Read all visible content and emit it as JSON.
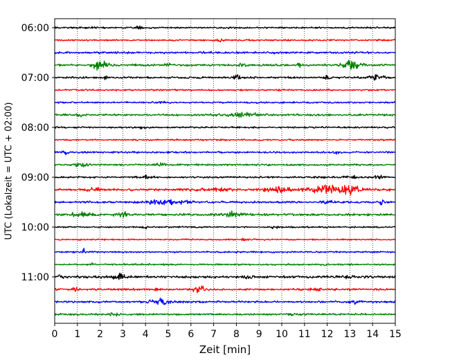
{
  "chart_data": {
    "type": "line",
    "title": "",
    "xlabel": "Zeit  [min]",
    "ylabel": "UTC (Lokalzeit = UTC + 02:00)",
    "xlim": [
      0,
      15
    ],
    "x_ticks": [
      "0",
      "1",
      "2",
      "3",
      "4",
      "5",
      "6",
      "7",
      "8",
      "9",
      "10",
      "11",
      "12",
      "13",
      "14",
      "15"
    ],
    "y_ticks": [
      "06:00",
      "07:00",
      "08:00",
      "09:00",
      "10:00",
      "11:00"
    ],
    "vertical_grid": "dotted, every 1 min",
    "trace_colors": [
      "#000000",
      "#ff0000",
      "#0000ff",
      "#008000"
    ],
    "series": [
      {
        "label": "06:00",
        "color": "#000000",
        "base": 0.9,
        "events": [
          [
            3.7,
            2.2,
            0.12
          ],
          [
            1.6,
            1.0,
            0.2
          ]
        ]
      },
      {
        "label": "06:15",
        "color": "#ff0000",
        "base": 0.9,
        "events": [
          [
            7.3,
            2.0,
            0.12
          ]
        ]
      },
      {
        "label": "06:30",
        "color": "#0000ff",
        "base": 1.1,
        "events": []
      },
      {
        "label": "06:45",
        "color": "#008000",
        "base": 1.1,
        "events": [
          [
            2.0,
            5.5,
            0.35
          ],
          [
            5.0,
            2.0,
            0.12
          ],
          [
            8.3,
            2.0,
            0.15
          ],
          [
            10.8,
            2.0,
            0.15
          ],
          [
            13.1,
            5.5,
            0.35
          ]
        ]
      },
      {
        "label": "07:00",
        "color": "#000000",
        "base": 1.0,
        "events": [
          [
            2.2,
            2.2,
            0.15
          ],
          [
            8.0,
            2.8,
            0.2
          ],
          [
            14.2,
            3.5,
            0.3
          ],
          [
            12.0,
            1.4,
            0.2
          ]
        ]
      },
      {
        "label": "07:15",
        "color": "#ff0000",
        "base": 0.9,
        "events": []
      },
      {
        "label": "07:30",
        "color": "#0000ff",
        "base": 0.9,
        "events": [
          [
            4.7,
            1.2,
            0.3
          ]
        ]
      },
      {
        "label": "07:45",
        "color": "#008000",
        "base": 1.1,
        "events": [
          [
            1.1,
            2.0,
            0.12
          ],
          [
            8.3,
            1.6,
            0.8
          ]
        ]
      },
      {
        "label": "08:00",
        "color": "#000000",
        "base": 0.9,
        "events": [
          [
            3.8,
            1.4,
            0.15
          ]
        ]
      },
      {
        "label": "08:15",
        "color": "#ff0000",
        "base": 0.9,
        "events": []
      },
      {
        "label": "08:30",
        "color": "#0000ff",
        "base": 1.0,
        "events": [
          [
            0.5,
            1.8,
            0.12
          ],
          [
            12.4,
            2.2,
            0.1
          ]
        ]
      },
      {
        "label": "08:45",
        "color": "#008000",
        "base": 1.0,
        "events": [
          [
            1.2,
            2.2,
            0.25
          ],
          [
            4.7,
            1.6,
            0.2
          ]
        ]
      },
      {
        "label": "09:00",
        "color": "#000000",
        "base": 1.0,
        "events": [
          [
            13.1,
            2.2,
            0.25
          ],
          [
            14.3,
            1.8,
            0.2
          ],
          [
            4.0,
            1.3,
            0.3
          ]
        ]
      },
      {
        "label": "09:15",
        "color": "#ff0000",
        "base": 1.3,
        "events": [
          [
            9.8,
            3.0,
            0.5
          ],
          [
            12.2,
            4.0,
            0.9
          ],
          [
            13.0,
            3.5,
            0.35
          ],
          [
            1.7,
            1.8,
            0.3
          ],
          [
            7.0,
            1.4,
            0.6
          ]
        ]
      },
      {
        "label": "09:30",
        "color": "#0000ff",
        "base": 1.1,
        "events": [
          [
            4.8,
            3.0,
            0.6
          ],
          [
            5.8,
            1.6,
            0.3
          ],
          [
            14.4,
            2.6,
            0.08
          ],
          [
            12.0,
            1.4,
            0.3
          ]
        ]
      },
      {
        "label": "09:45",
        "color": "#008000",
        "base": 1.3,
        "events": [
          [
            1.2,
            2.0,
            0.5
          ],
          [
            7.8,
            2.6,
            0.4
          ],
          [
            3.0,
            1.4,
            0.3
          ]
        ]
      },
      {
        "label": "10:00",
        "color": "#000000",
        "base": 0.8,
        "events": [
          [
            9.7,
            1.6,
            0.12
          ],
          [
            4.0,
            1.3,
            0.12
          ]
        ]
      },
      {
        "label": "10:15",
        "color": "#ff0000",
        "base": 0.8,
        "events": [
          [
            8.3,
            1.6,
            0.1
          ]
        ]
      },
      {
        "label": "10:30",
        "color": "#0000ff",
        "base": 0.9,
        "events": [
          [
            1.3,
            3.2,
            0.06
          ]
        ]
      },
      {
        "label": "10:45",
        "color": "#008000",
        "base": 0.9,
        "events": [
          [
            1.6,
            2.2,
            0.08
          ],
          [
            12.0,
            2.8,
            0.08
          ]
        ]
      },
      {
        "label": "11:00",
        "color": "#000000",
        "base": 1.3,
        "events": [
          [
            0.2,
            2.0,
            0.15
          ],
          [
            2.9,
            2.6,
            0.3
          ],
          [
            13.0,
            1.8,
            0.2
          ],
          [
            8.5,
            1.4,
            0.3
          ]
        ]
      },
      {
        "label": "11:15",
        "color": "#ff0000",
        "base": 1.1,
        "events": [
          [
            0.9,
            2.6,
            0.12
          ],
          [
            4.5,
            2.0,
            0.12
          ],
          [
            6.4,
            2.8,
            0.3
          ],
          [
            11.5,
            1.4,
            0.3
          ]
        ]
      },
      {
        "label": "11:30",
        "color": "#0000ff",
        "base": 1.1,
        "events": [
          [
            4.7,
            3.2,
            0.45
          ],
          [
            13.3,
            1.3,
            0.3
          ]
        ]
      },
      {
        "label": "11:45",
        "color": "#008000",
        "base": 1.0,
        "events": [
          [
            10.4,
            2.4,
            0.12
          ],
          [
            2.6,
            1.3,
            0.3
          ]
        ]
      }
    ]
  }
}
